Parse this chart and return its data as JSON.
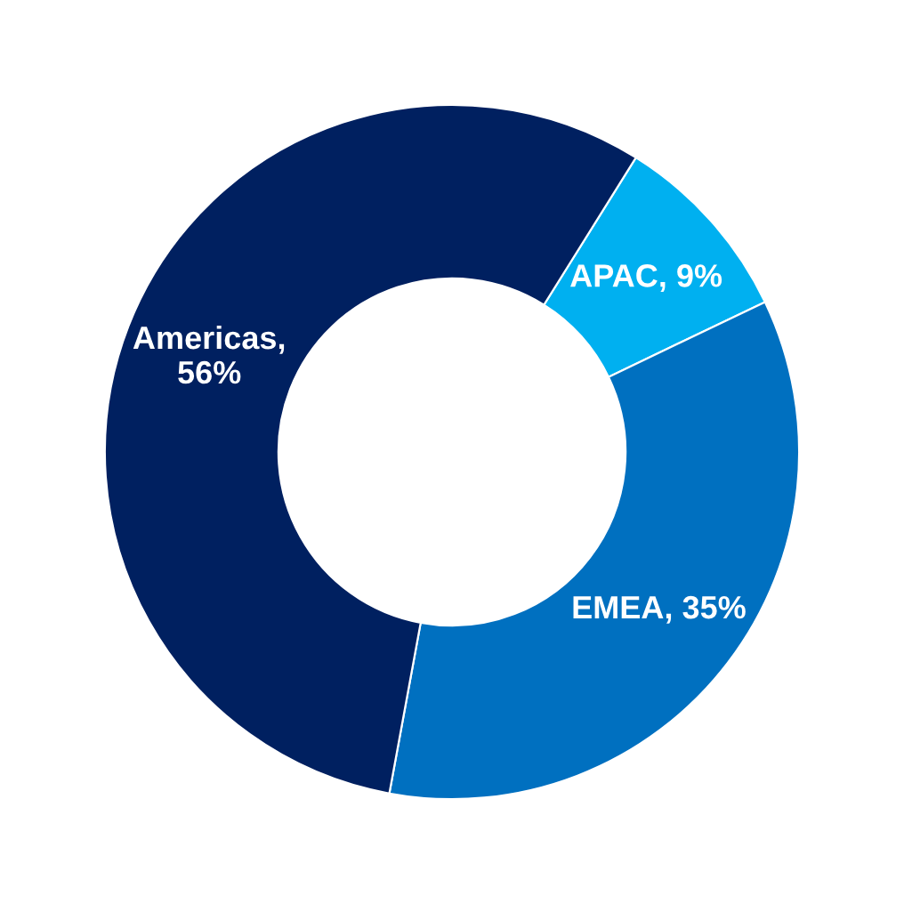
{
  "chart_data": {
    "type": "donut",
    "categories": [
      "APAC",
      "EMEA",
      "Americas"
    ],
    "values": [
      9,
      35,
      56
    ],
    "colors": [
      "#00b0f0",
      "#0070c0",
      "#002060"
    ],
    "value_labels": [
      ", 9%",
      ", 35%",
      ",\n56%"
    ]
  }
}
